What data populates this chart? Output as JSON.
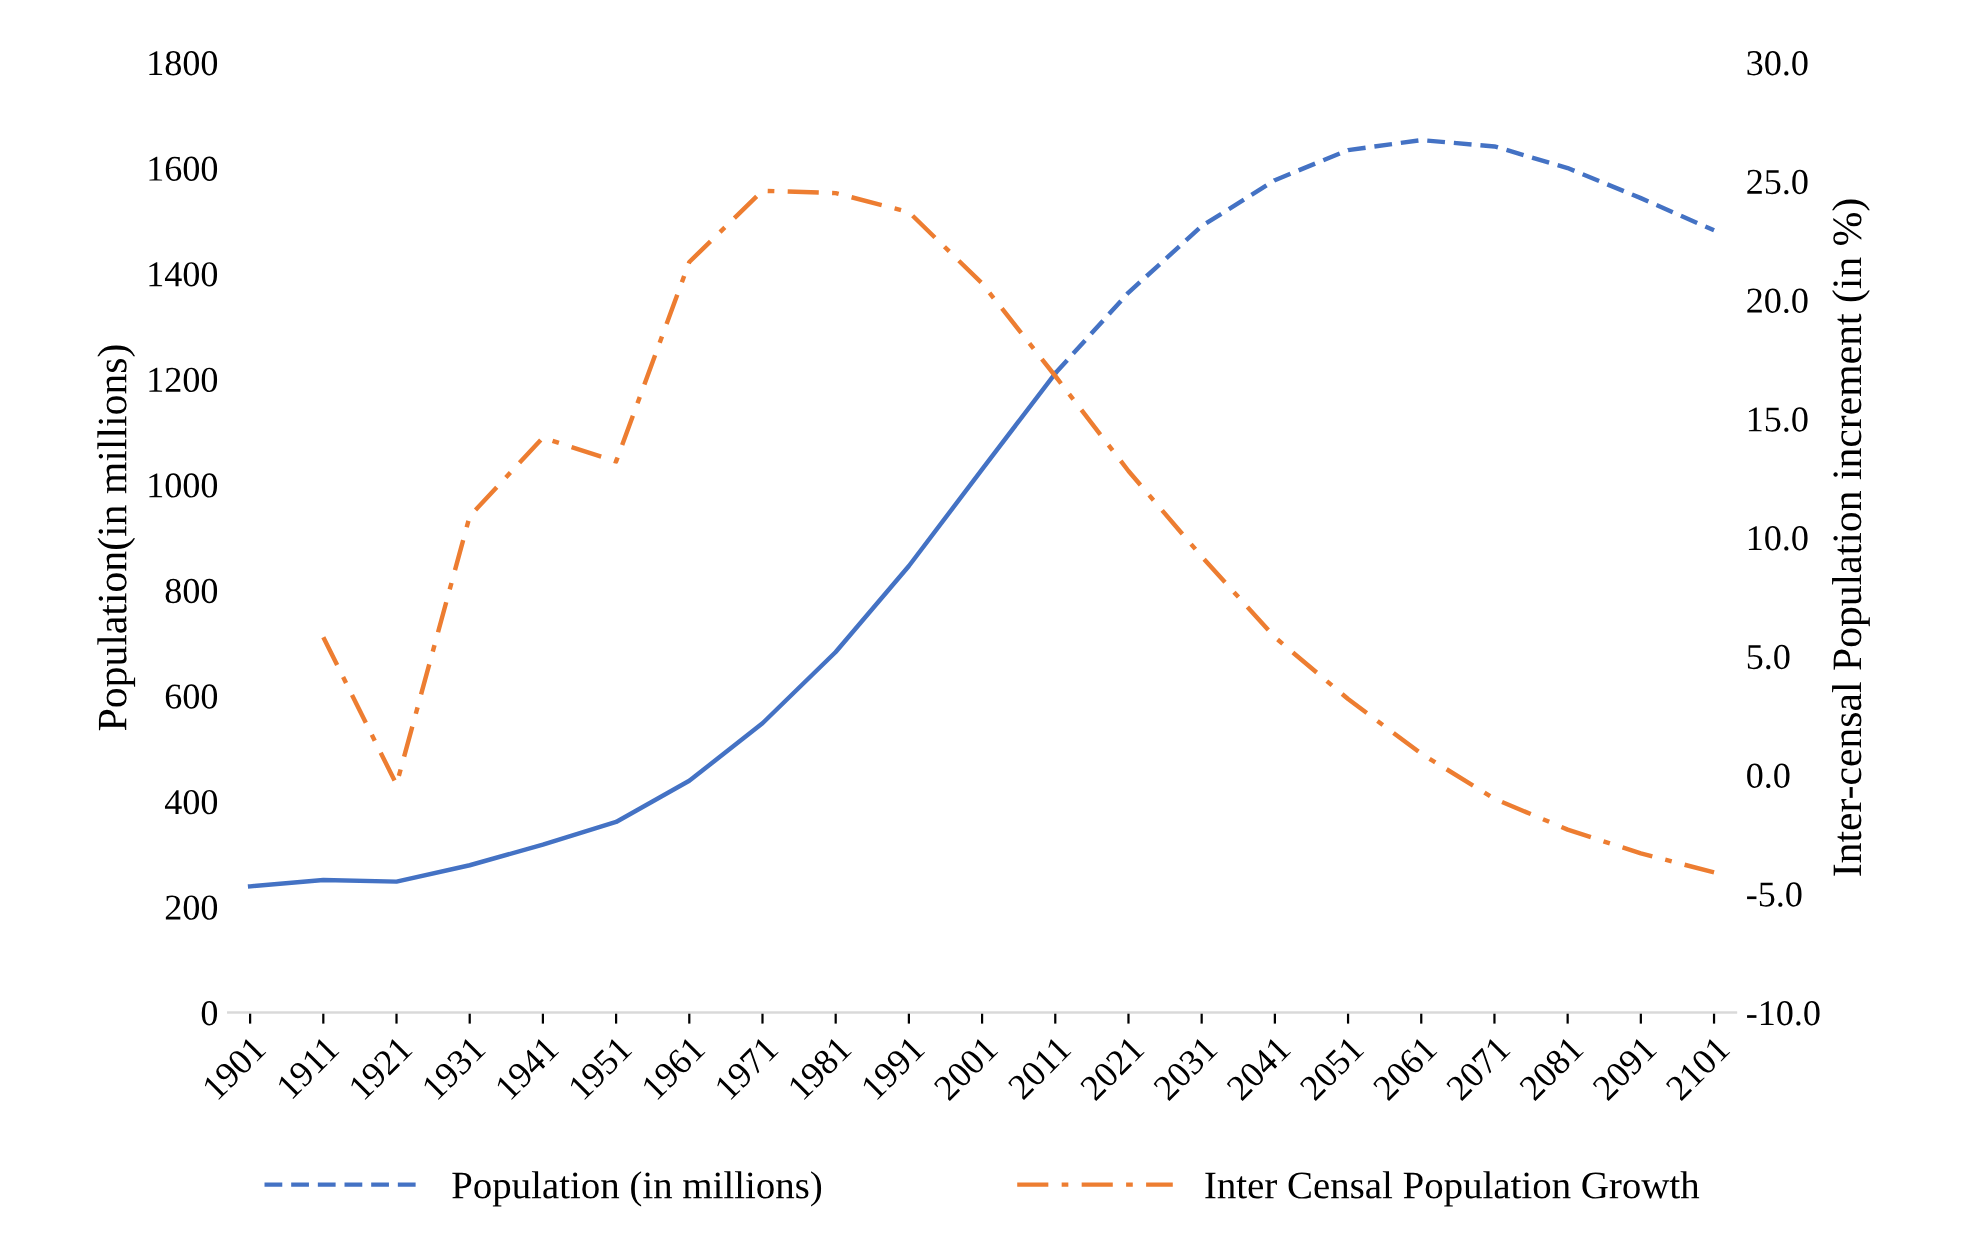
{
  "chart_data": {
    "type": "line",
    "categories": [
      "1901",
      "1911",
      "1921",
      "1931",
      "1941",
      "1951",
      "1961",
      "1971",
      "1981",
      "1991",
      "2001",
      "2011",
      "2021",
      "2031",
      "2041",
      "2051",
      "2061",
      "2071",
      "2081",
      "2091",
      "2101"
    ],
    "ylabel": "Population(in millions)",
    "y2label": "Inter-censal Population increment (in %)",
    "ylim": [
      0,
      1800
    ],
    "yticks": [
      0,
      200,
      400,
      600,
      800,
      1000,
      1200,
      1400,
      1600,
      1800
    ],
    "y2lim": [
      -10,
      30
    ],
    "y2ticks": [
      {
        "value": -10,
        "label": "-10.0"
      },
      {
        "value": -5,
        "label": "-5.0"
      },
      {
        "value": 0,
        "label": "0.0"
      },
      {
        "value": 5,
        "label": "5.0"
      },
      {
        "value": 10,
        "label": "10.0"
      },
      {
        "value": 15,
        "label": "15.0"
      },
      {
        "value": 20,
        "label": "20.0"
      },
      {
        "value": 25,
        "label": "25.0"
      },
      {
        "value": 30,
        "label": "30.0"
      }
    ],
    "grid": false,
    "legend": "bottom",
    "marker": "none",
    "series": [
      {
        "color": "#4472c4",
        "line_style": "solid",
        "values": [
          239,
          251,
          248,
          279,
          318,
          361,
          439,
          548,
          683,
          846,
          1029,
          1211,
          null,
          null,
          null,
          null,
          null,
          null,
          null,
          null,
          null
        ]
      },
      {
        "name": "Population (in millions)",
        "color": "#4472c4",
        "line_style": "dashed",
        "values": [
          null,
          null,
          null,
          null,
          null,
          null,
          null,
          null,
          null,
          null,
          null,
          1211,
          1364,
          1490,
          1577,
          1634,
          1653,
          1641,
          1600,
          1543,
          1482
        ]
      },
      {
        "name": "Inter Censal Population Growth",
        "color": "#ed7d31",
        "line_style": "dashdot",
        "axis": "y2",
        "values": [
          null,
          5.8,
          -0.4,
          10.9,
          14.2,
          13.2,
          21.6,
          24.6,
          24.5,
          23.7,
          20.7,
          16.8,
          12.8,
          9.2,
          5.8,
          3.2,
          0.9,
          -1.0,
          -2.3,
          -3.3,
          -4.1
        ]
      }
    ]
  }
}
